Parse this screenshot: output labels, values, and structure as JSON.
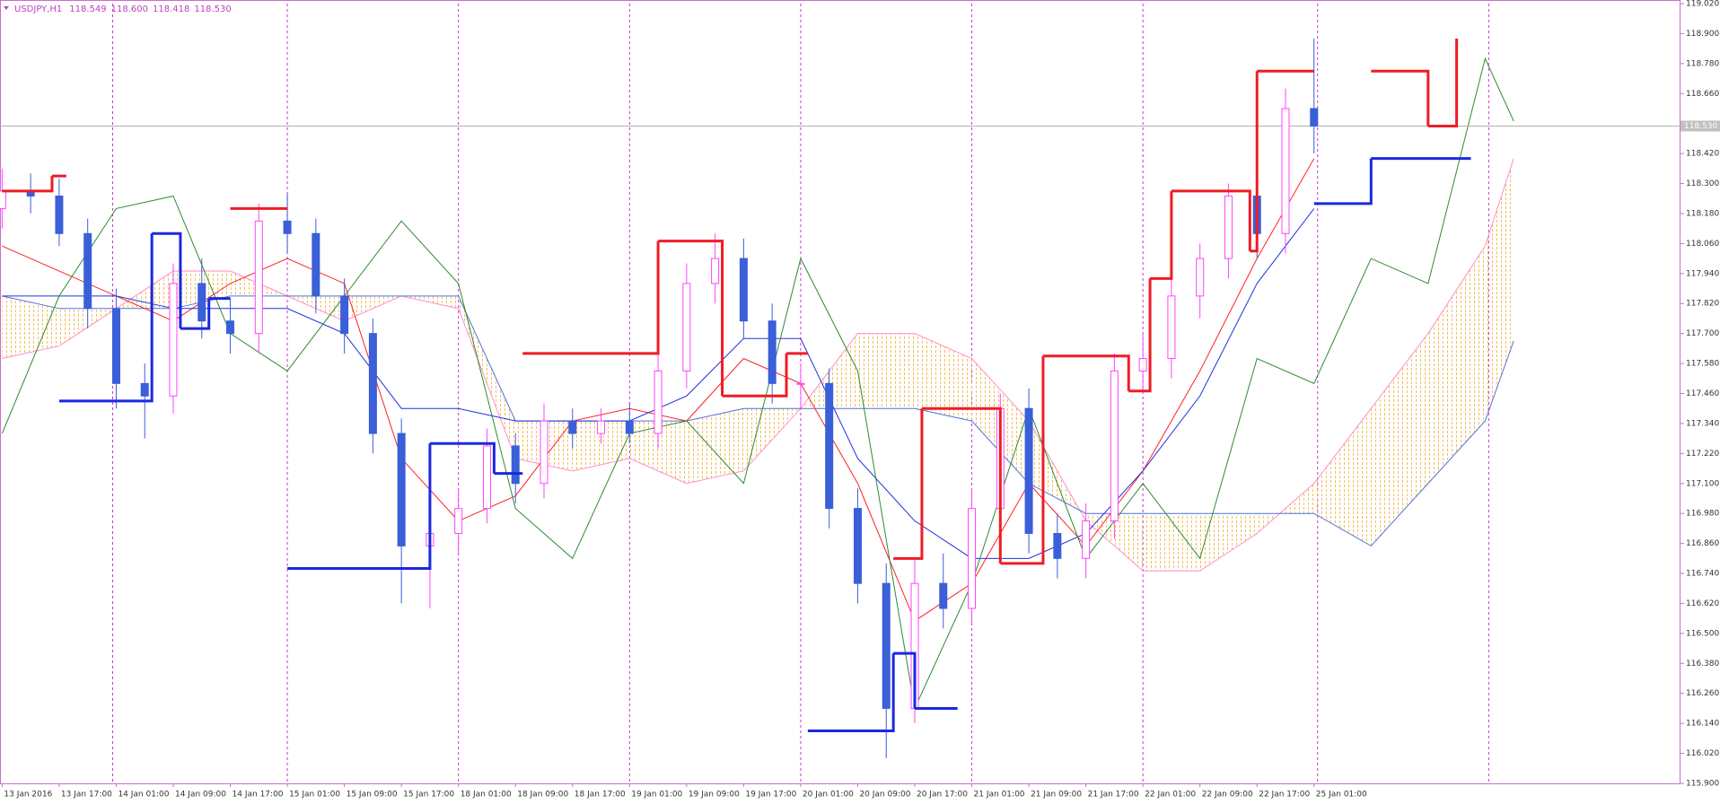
{
  "chart_data": {
    "type": "candlestick",
    "title": "USDJPY,H1",
    "header_quote": [
      {
        "value": 118.549,
        "label": "118.549"
      },
      {
        "value": 118.6,
        "label": "118.600"
      },
      {
        "value": 118.418,
        "label": "118.418"
      },
      {
        "value": 118.53,
        "label": "118.530"
      }
    ],
    "last_price": {
      "value": 118.53,
      "label": "118.530"
    },
    "xlim": [
      -0.3,
      235.4
    ],
    "ylim": [
      115.9,
      119.02
    ],
    "yticks": [
      {
        "value": 119.02,
        "label": "119.020"
      },
      {
        "value": 118.9,
        "label": "118.900"
      },
      {
        "value": 118.78,
        "label": "118.780"
      },
      {
        "value": 118.66,
        "label": "118.660"
      },
      {
        "value": 118.42,
        "label": "118.420"
      },
      {
        "value": 118.3,
        "label": "118.300"
      },
      {
        "value": 118.18,
        "label": "118.180"
      },
      {
        "value": 118.06,
        "label": "118.060"
      },
      {
        "value": 117.94,
        "label": "117.940"
      },
      {
        "value": 117.82,
        "label": "117.820"
      },
      {
        "value": 117.7,
        "label": "117.700"
      },
      {
        "value": 117.58,
        "label": "117.580"
      },
      {
        "value": 117.46,
        "label": "117.460"
      },
      {
        "value": 117.34,
        "label": "117.340"
      },
      {
        "value": 117.22,
        "label": "117.220"
      },
      {
        "value": 117.1,
        "label": "117.100"
      },
      {
        "value": 116.98,
        "label": "116.980"
      },
      {
        "value": 116.86,
        "label": "116.860"
      },
      {
        "value": 116.74,
        "label": "116.740"
      },
      {
        "value": 116.62,
        "label": "116.620"
      },
      {
        "value": 116.5,
        "label": "116.500"
      },
      {
        "value": 116.38,
        "label": "116.380"
      },
      {
        "value": 116.26,
        "label": "116.260"
      },
      {
        "value": 116.14,
        "label": "116.140"
      },
      {
        "value": 116.02,
        "label": "116.020"
      },
      {
        "value": 115.9,
        "label": "115.900"
      }
    ],
    "xticks": [
      {
        "value": 0,
        "label": "13 Jan 2016"
      },
      {
        "value": 8,
        "label": "13 Jan 17:00"
      },
      {
        "value": 16,
        "label": "14 Jan 01:00"
      },
      {
        "value": 24,
        "label": "14 Jan 09:00"
      },
      {
        "value": 32,
        "label": "14 Jan 17:00"
      },
      {
        "value": 40,
        "label": "15 Jan 01:00"
      },
      {
        "value": 48,
        "label": "15 Jan 09:00"
      },
      {
        "value": 56,
        "label": "15 Jan 17:00"
      },
      {
        "value": 64,
        "label": "18 Jan 01:00"
      },
      {
        "value": 72,
        "label": "18 Jan 09:00"
      },
      {
        "value": 80,
        "label": "18 Jan 17:00"
      },
      {
        "value": 88,
        "label": "19 Jan 01:00"
      },
      {
        "value": 96,
        "label": "19 Jan 09:00"
      },
      {
        "value": 104,
        "label": "19 Jan 17:00"
      },
      {
        "value": 112,
        "label": "20 Jan 01:00"
      },
      {
        "value": 120,
        "label": "20 Jan 09:00"
      },
      {
        "value": 128,
        "label": "20 Jan 17:00"
      },
      {
        "value": 136,
        "label": "21 Jan 01:00"
      },
      {
        "value": 144,
        "label": "21 Jan 09:00"
      },
      {
        "value": 152,
        "label": "21 Jan 17:00"
      },
      {
        "value": 160,
        "label": "22 Jan 01:00"
      },
      {
        "value": 168,
        "label": "22 Jan 09:00"
      },
      {
        "value": 176,
        "label": "22 Jan 17:00"
      },
      {
        "value": 184,
        "label": "25 Jan 01:00"
      }
    ],
    "separators": {
      "color": "#cc33cc",
      "x": [
        15.5,
        40,
        64,
        88,
        112,
        136,
        160,
        184.5,
        208.5
      ]
    },
    "candles": {
      "bull_color": "#ff44ff",
      "bear_color": "#3a5fd8",
      "x": [
        0,
        4,
        8,
        12,
        16,
        20,
        24,
        28,
        32,
        36,
        40,
        44,
        48,
        52,
        56,
        60,
        64,
        68,
        72,
        76,
        80,
        84,
        88,
        92,
        96,
        100,
        104,
        108,
        112,
        116,
        120,
        124,
        128,
        132,
        136,
        140,
        144,
        148,
        152,
        156,
        160,
        164,
        168,
        172,
        176,
        180,
        184
      ],
      "open": [
        118.2,
        118.27,
        118.25,
        118.1,
        117.8,
        117.5,
        117.45,
        117.9,
        117.75,
        117.7,
        118.15,
        118.1,
        117.85,
        117.7,
        117.3,
        116.85,
        116.9,
        117.0,
        117.25,
        117.1,
        117.35,
        117.3,
        117.35,
        117.3,
        117.55,
        117.9,
        118.0,
        117.75,
        117.5,
        117.5,
        117.0,
        116.7,
        116.2,
        116.7,
        116.6,
        117.0,
        117.4,
        116.9,
        116.8,
        116.95,
        117.55,
        117.6,
        117.85,
        118.0,
        118.25,
        118.1,
        118.6
      ],
      "high": [
        118.36,
        118.34,
        118.32,
        118.16,
        117.88,
        117.58,
        117.98,
        118.0,
        117.84,
        118.22,
        118.26,
        118.16,
        117.92,
        117.76,
        117.36,
        116.98,
        117.08,
        117.32,
        117.3,
        117.42,
        117.4,
        117.4,
        117.42,
        117.62,
        117.98,
        118.1,
        118.08,
        117.82,
        117.58,
        117.56,
        117.08,
        116.78,
        116.8,
        116.82,
        117.08,
        117.46,
        117.48,
        116.98,
        117.02,
        117.62,
        117.7,
        117.92,
        118.06,
        118.3,
        118.32,
        118.68,
        118.88
      ],
      "low": [
        118.12,
        118.18,
        118.05,
        117.72,
        117.4,
        117.28,
        117.38,
        117.68,
        117.62,
        117.62,
        118.02,
        117.78,
        117.62,
        117.22,
        116.62,
        116.6,
        116.82,
        116.94,
        117.02,
        117.04,
        117.24,
        117.26,
        117.26,
        117.24,
        117.48,
        117.82,
        117.68,
        117.42,
        117.4,
        116.92,
        116.62,
        116.0,
        116.14,
        116.52,
        116.54,
        116.92,
        116.82,
        116.72,
        116.72,
        116.88,
        117.46,
        117.52,
        117.76,
        117.92,
        118.0,
        118.02,
        118.42
      ],
      "close": [
        118.27,
        118.25,
        118.1,
        117.8,
        117.5,
        117.45,
        117.9,
        117.75,
        117.7,
        118.15,
        118.1,
        117.85,
        117.7,
        117.3,
        116.85,
        116.9,
        117.0,
        117.25,
        117.1,
        117.35,
        117.3,
        117.35,
        117.3,
        117.55,
        117.9,
        118.0,
        117.75,
        117.5,
        117.5,
        117.0,
        116.7,
        116.2,
        116.7,
        116.6,
        117.0,
        117.4,
        116.9,
        116.8,
        116.95,
        117.55,
        117.6,
        117.85,
        118.0,
        118.25,
        118.1,
        118.6,
        118.53
      ]
    },
    "cloud": {
      "fill": "#f2b84a",
      "color_a": "#ff8fc8",
      "color_b": "#4f74dc",
      "x": [
        0,
        8,
        16,
        24,
        32,
        40,
        48,
        56,
        64,
        72,
        80,
        88,
        96,
        104,
        112,
        120,
        128,
        136,
        144,
        152,
        160,
        168,
        176,
        184,
        192,
        200,
        208,
        212
      ],
      "span_a": [
        117.6,
        117.65,
        117.8,
        117.95,
        117.95,
        117.85,
        117.75,
        117.85,
        117.8,
        117.2,
        117.15,
        117.2,
        117.1,
        117.15,
        117.4,
        117.7,
        117.7,
        117.6,
        117.35,
        116.95,
        116.75,
        116.75,
        116.9,
        117.1,
        117.4,
        117.7,
        118.05,
        118.4
      ],
      "span_b": [
        117.85,
        117.8,
        117.8,
        117.8,
        117.85,
        117.85,
        117.85,
        117.85,
        117.85,
        117.35,
        117.35,
        117.35,
        117.35,
        117.4,
        117.4,
        117.4,
        117.4,
        117.35,
        117.1,
        116.98,
        116.98,
        116.98,
        116.98,
        116.98,
        116.85,
        117.1,
        117.35,
        117.67
      ]
    },
    "lines": [
      {
        "color": "#ff2020",
        "x": [
          0,
          8,
          16,
          24,
          32,
          40,
          48,
          56,
          64,
          72,
          80,
          88,
          96,
          104,
          112,
          120,
          128,
          136,
          144,
          152,
          160,
          168,
          176,
          184
        ],
        "values": [
          118.05,
          117.95,
          117.85,
          117.75,
          117.9,
          118.0,
          117.9,
          117.2,
          116.95,
          117.05,
          117.35,
          117.4,
          117.35,
          117.6,
          117.5,
          117.1,
          116.55,
          116.7,
          117.1,
          116.85,
          117.15,
          117.55,
          118.0,
          118.4
        ]
      },
      {
        "color": "#2030e0",
        "x": [
          0,
          8,
          16,
          24,
          32,
          40,
          48,
          56,
          64,
          72,
          80,
          88,
          96,
          104,
          112,
          120,
          128,
          136,
          144,
          152,
          160,
          168,
          176,
          184
        ],
        "values": [
          117.85,
          117.85,
          117.85,
          117.8,
          117.8,
          117.8,
          117.7,
          117.4,
          117.4,
          117.35,
          117.35,
          117.35,
          117.45,
          117.68,
          117.68,
          117.2,
          116.95,
          116.8,
          116.8,
          116.9,
          117.15,
          117.45,
          117.9,
          118.2
        ]
      },
      {
        "color": "#2e8b2e",
        "x": [
          0,
          8,
          16,
          24,
          32,
          40,
          48,
          56,
          64,
          72,
          80,
          88,
          96,
          104,
          112,
          120,
          128,
          136,
          144,
          152,
          160,
          168,
          176,
          184,
          192,
          200,
          208,
          212
        ],
        "values": [
          117.3,
          117.85,
          118.2,
          118.25,
          117.7,
          117.55,
          117.85,
          118.15,
          117.9,
          117.0,
          116.8,
          117.3,
          117.35,
          117.1,
          118.0,
          117.55,
          116.2,
          116.7,
          117.4,
          116.8,
          117.1,
          116.8,
          117.6,
          117.5,
          118.0,
          117.9,
          118.8,
          118.55
        ]
      }
    ],
    "steps": [
      {
        "color": "#ee1c24",
        "x": [
          0,
          7,
          9,
          32,
          40,
          73,
          92,
          101,
          110,
          113,
          125,
          129,
          140,
          146,
          158,
          161,
          164,
          175,
          176,
          184,
          192,
          200,
          204
        ],
        "values": [
          118.27,
          118.33,
          null,
          118.2,
          null,
          117.62,
          118.07,
          117.45,
          117.62,
          null,
          116.8,
          117.4,
          116.78,
          117.61,
          117.47,
          117.92,
          118.27,
          118.03,
          118.75,
          null,
          118.75,
          118.53,
          118.88
        ]
      },
      {
        "color": "#1c28e0",
        "x": [
          8,
          21,
          25,
          29,
          32,
          40,
          60,
          69,
          73,
          113,
          125,
          128,
          134,
          184,
          192,
          206
        ],
        "values": [
          117.43,
          118.1,
          117.72,
          117.84,
          null,
          116.76,
          117.26,
          117.14,
          null,
          116.11,
          116.42,
          116.2,
          null,
          118.22,
          118.4,
          null
        ]
      }
    ]
  }
}
